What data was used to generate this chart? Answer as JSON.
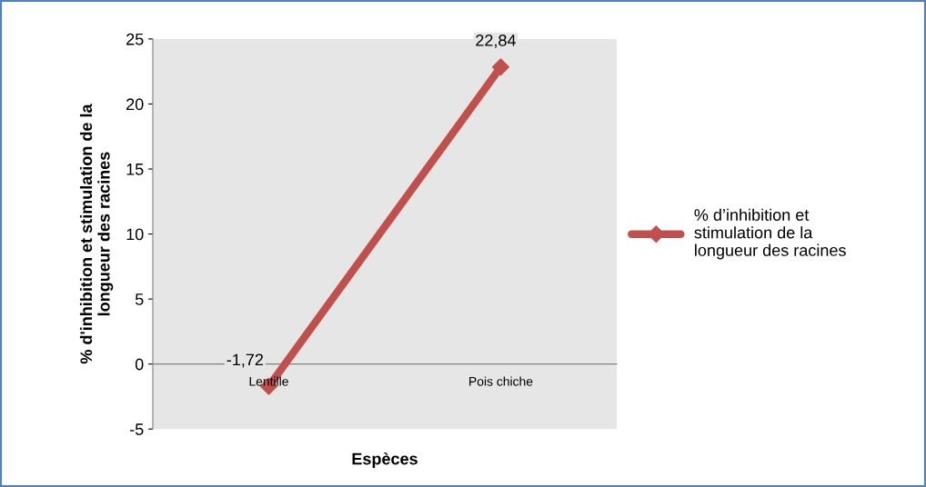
{
  "chart_data": {
    "type": "line",
    "xlabel": "Espèces",
    "ylabel": "% d'inhibition et stimulation de la\nlongueur des racines",
    "categories": [
      "Lentille",
      "Pois chiche"
    ],
    "series": [
      {
        "name": "% d’inhibition et\nstimulation de la\nlongueur des racines",
        "color": "#c0504d",
        "values": [
          -1.72,
          22.84
        ],
        "value_labels": [
          "-1,72",
          "22,84"
        ]
      }
    ],
    "ylim": [
      -5,
      25
    ],
    "yticks": [
      -5,
      0,
      5,
      10,
      15,
      20,
      25
    ],
    "grid": false,
    "legend": "right",
    "marker": "diamond",
    "line_style": "solid"
  }
}
